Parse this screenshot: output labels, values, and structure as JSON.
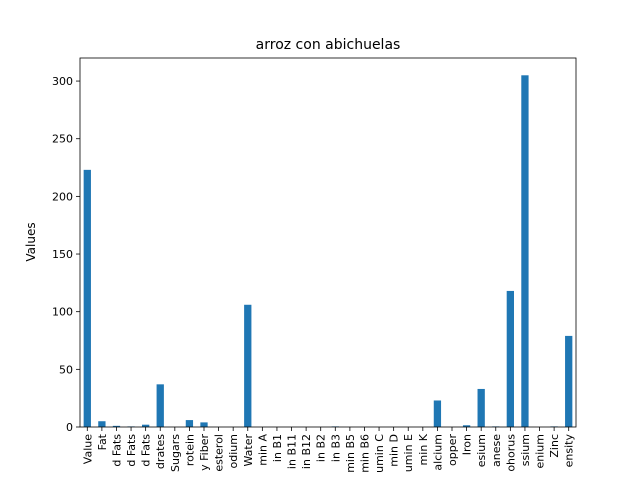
{
  "chart_data": {
    "type": "bar",
    "title": "arroz con abichuelas",
    "xlabel": "",
    "ylabel": "Values",
    "ylim": [
      0,
      320
    ],
    "yticks": [
      0,
      50,
      100,
      150,
      200,
      250,
      300
    ],
    "grid": false,
    "legend": "none",
    "bar_color": "#1f77b4",
    "categories": [
      "Value",
      "Fat",
      "d Fats",
      "d Fats",
      "d Fats",
      "drates",
      "Sugars",
      "rotein",
      "y Fiber",
      "esterol",
      "odium",
      "Water",
      "min A",
      "in B1",
      "in B11",
      "in B12",
      "in B2",
      "in B3",
      "min B5",
      "min B6",
      "umin C",
      "min D",
      "umin E",
      "min K",
      "alcium",
      "opper",
      "Iron",
      "esium",
      "anese",
      "ohorus",
      "ssium",
      "enium",
      "Zinc",
      "ensity"
    ],
    "values": [
      223,
      5,
      1,
      0.5,
      2,
      37,
      0,
      6,
      4,
      0,
      0,
      106,
      0,
      0,
      0,
      0,
      0,
      0.5,
      0,
      0,
      0,
      0,
      0,
      0,
      23,
      0,
      1.5,
      33,
      0.5,
      118,
      305,
      0,
      0.5,
      79
    ]
  }
}
